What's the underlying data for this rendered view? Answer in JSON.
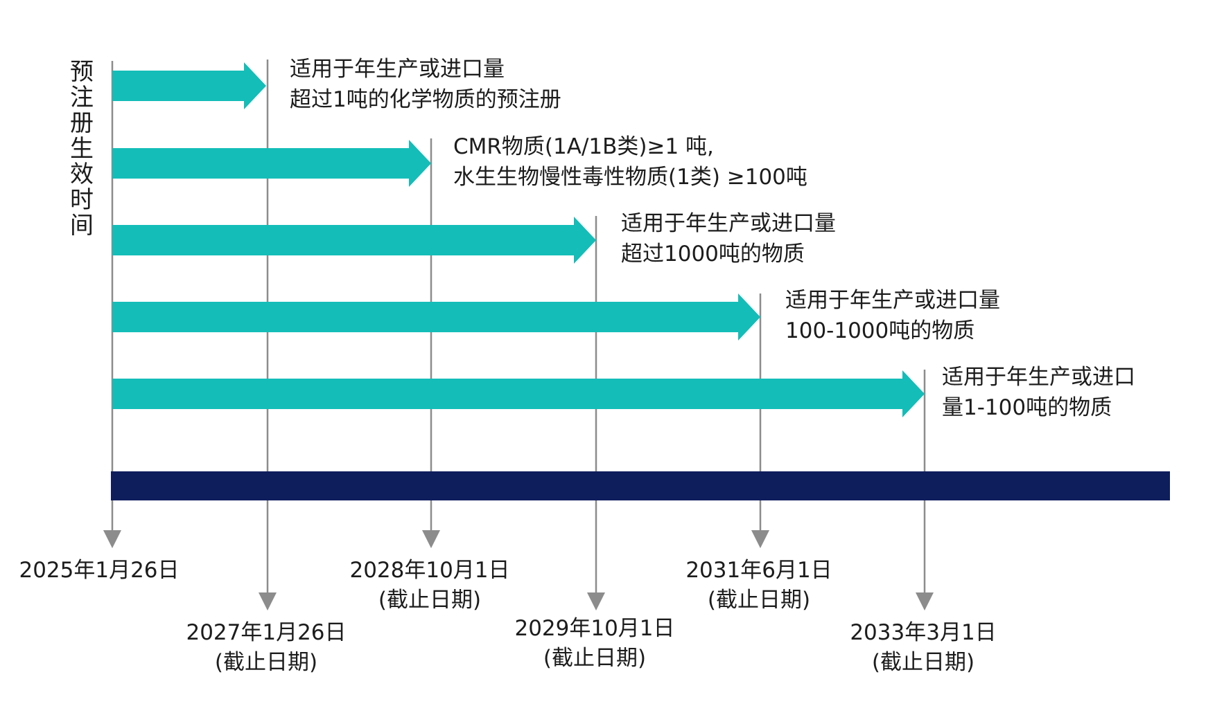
{
  "axis_label": "预注册生效时间",
  "colors": {
    "arrow": "#14bdb8",
    "bar": "#0e1d5c",
    "line": "#8c8c8c",
    "text": "#1c1c1c"
  },
  "arrows": [
    {
      "line1": "适用于年生产或进口量",
      "line2": "超过1吨的化学物质的预注册"
    },
    {
      "line1": "CMR物质(1A/1B类)≥1 吨,",
      "line2": "水生生物慢性毒性物质(1类) ≥100吨"
    },
    {
      "line1": "适用于年生产或进口量",
      "line2": "超过1000吨的物质"
    },
    {
      "line1": "适用于年生产或进口量",
      "line2": "100-1000吨的物质"
    },
    {
      "line1": "适用于年生产或进口",
      "line2": "量1-100吨的物质"
    }
  ],
  "dates": [
    {
      "date": "2025年1月26日",
      "note": ""
    },
    {
      "date": "2027年1月26日",
      "note": "(截止日期)"
    },
    {
      "date": "2028年10月1日",
      "note": "(截止日期)"
    },
    {
      "date": "2029年10月1日",
      "note": "(截止日期)"
    },
    {
      "date": "2031年6月1日",
      "note": "(截止日期)"
    },
    {
      "date": "2033年3月1日",
      "note": "(截止日期)"
    }
  ]
}
